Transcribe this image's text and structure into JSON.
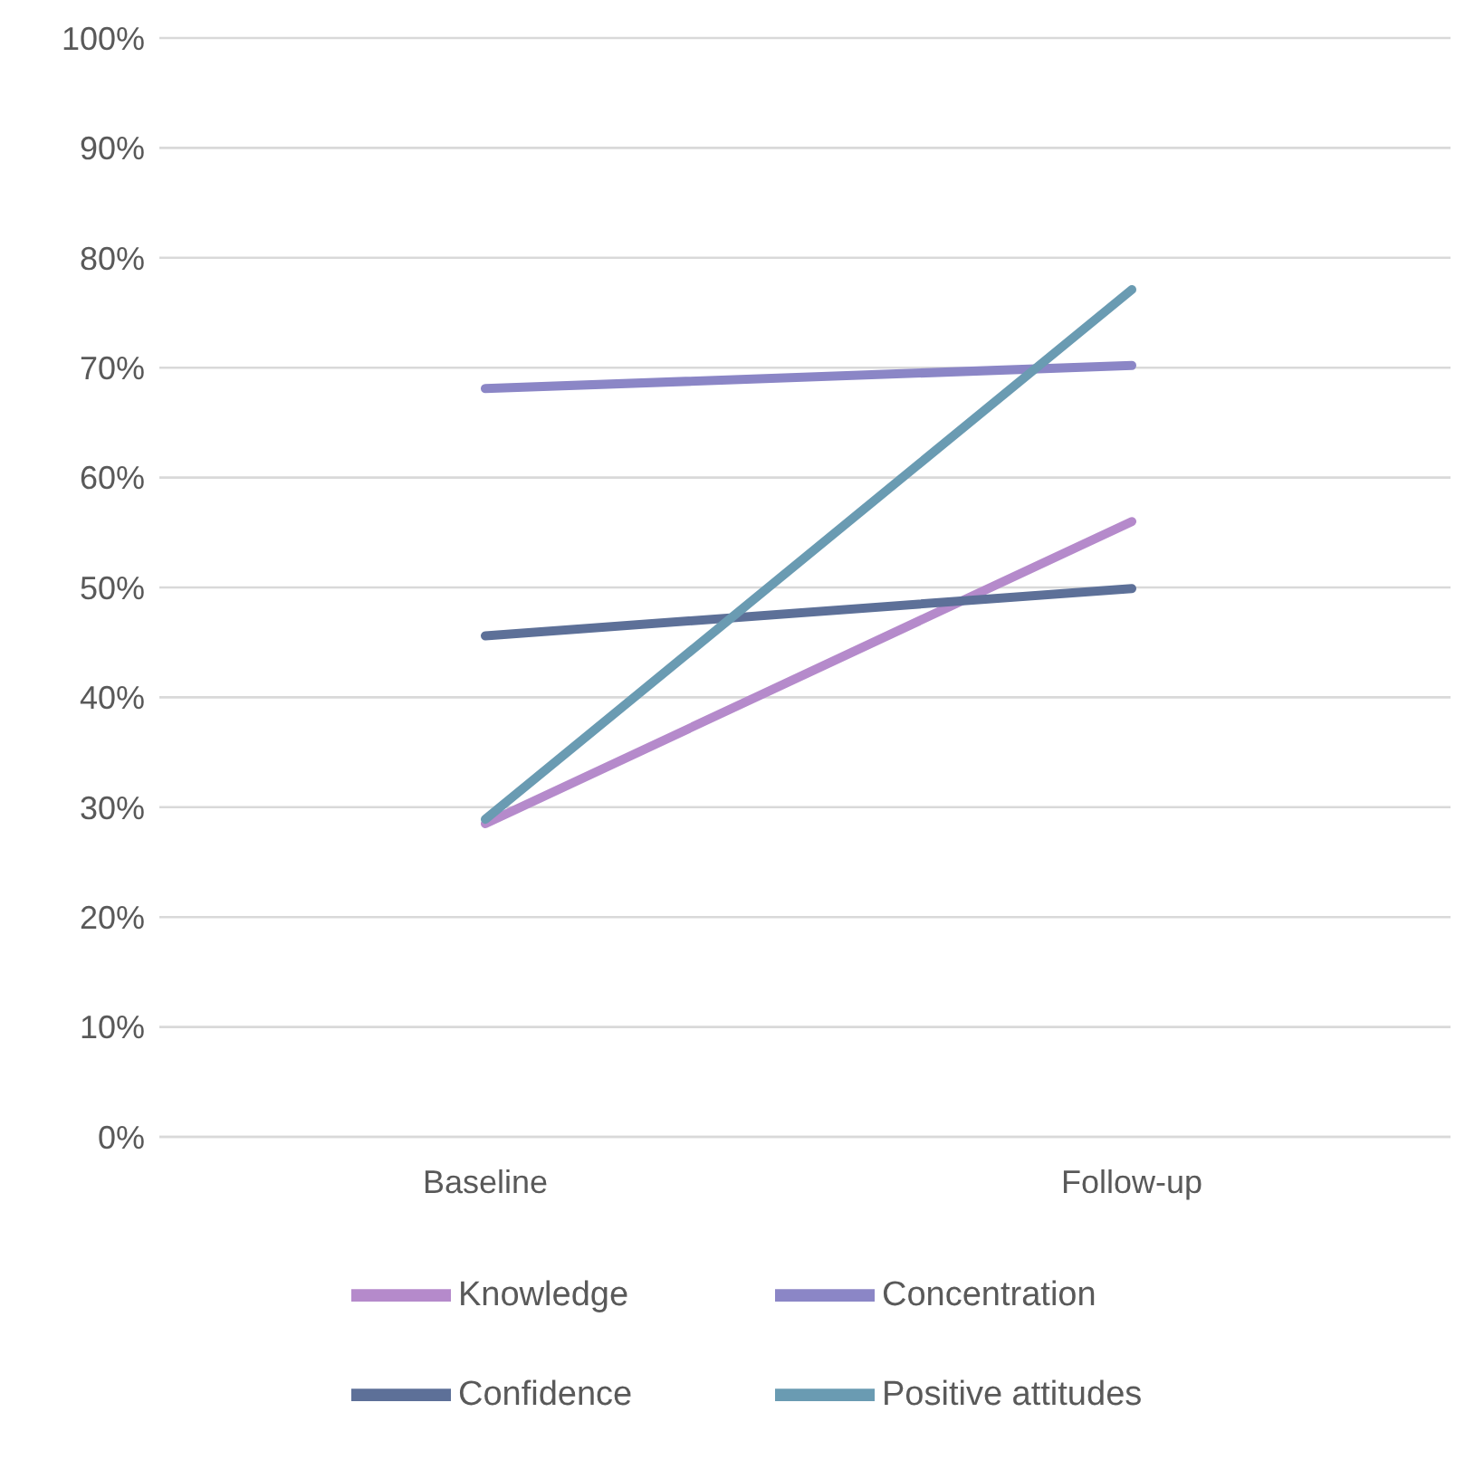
{
  "chart_data": {
    "type": "line",
    "categories": [
      "Baseline",
      "Follow-up"
    ],
    "series": [
      {
        "name": "Knowledge",
        "color": "#b58acb",
        "values": [
          28.5,
          56
        ]
      },
      {
        "name": "Concentration",
        "color": "#8b86c6",
        "values": [
          68.1,
          70.2
        ]
      },
      {
        "name": "Confidence",
        "color": "#5d7098",
        "values": [
          45.6,
          49.9
        ]
      },
      {
        "name": "Positive attitudes",
        "color": "#6a9bb2",
        "values": [
          28.9,
          77.1
        ]
      }
    ],
    "ylim": [
      0,
      100
    ],
    "yticks": [
      {
        "value": 0,
        "label": "0%"
      },
      {
        "value": 10,
        "label": "10%"
      },
      {
        "value": 20,
        "label": "20%"
      },
      {
        "value": 30,
        "label": "30%"
      },
      {
        "value": 40,
        "label": "40%"
      },
      {
        "value": 50,
        "label": "50%"
      },
      {
        "value": 60,
        "label": "60%"
      },
      {
        "value": 70,
        "label": "70%"
      },
      {
        "value": 80,
        "label": "80%"
      },
      {
        "value": 90,
        "label": "90%"
      },
      {
        "value": 100,
        "label": "100%"
      }
    ],
    "grid": "y",
    "legend": "bottom",
    "marker": "none",
    "line_style": "solid"
  }
}
